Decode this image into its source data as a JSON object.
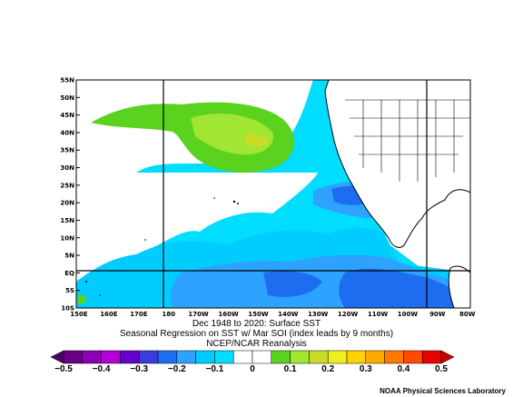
{
  "map": {
    "lat_labels": [
      "55N",
      "50N",
      "45N",
      "40N",
      "35N",
      "30N",
      "25N",
      "20N",
      "15N",
      "10N",
      "5N",
      "EQ",
      "5S",
      "10S"
    ],
    "lon_labels": [
      "150E",
      "160E",
      "170E",
      "180",
      "170W",
      "160W",
      "150W",
      "140W",
      "130W",
      "120W",
      "110W",
      "100W",
      "90W",
      "80W"
    ],
    "colors": {
      "ocean_pos_light": "#ffffff",
      "cyan_weak": "#00ddff",
      "cyan": "#00ccff",
      "light_blue": "#2ea2ff",
      "blue": "#1e6cf0",
      "green_light": "#a0e632",
      "green": "#5ad21e",
      "yellow_green": "#c8dc28",
      "land_outline": "#000000"
    }
  },
  "titles": {
    "line1": "Dec 1948 to 2020: Surface SST",
    "line2": "Seasonal Regression on SST  w/ Mar SOI (index leads by 9 months)",
    "line3": "NCEP/NCAR Reanalysis"
  },
  "colorbar": {
    "ticks": [
      "−0.5",
      "−0.4",
      "−0.3",
      "−0.2",
      "−0.1",
      "0",
      "0.1",
      "0.2",
      "0.3",
      "0.4",
      "0.5"
    ],
    "colors": [
      "#6a0082",
      "#8c00b4",
      "#b400d2",
      "#6600cc",
      "#3c3cdc",
      "#1e6cf0",
      "#2ea2ff",
      "#00ccff",
      "#00ddff",
      "#ffffff",
      "#ffffff",
      "#5ad21e",
      "#a0e632",
      "#c8dc28",
      "#f0f01e",
      "#ffd200",
      "#ffaa00",
      "#ff7800",
      "#ff4b00",
      "#e60000"
    ]
  },
  "credit": "NOAA Physical Sciences Laboratory"
}
